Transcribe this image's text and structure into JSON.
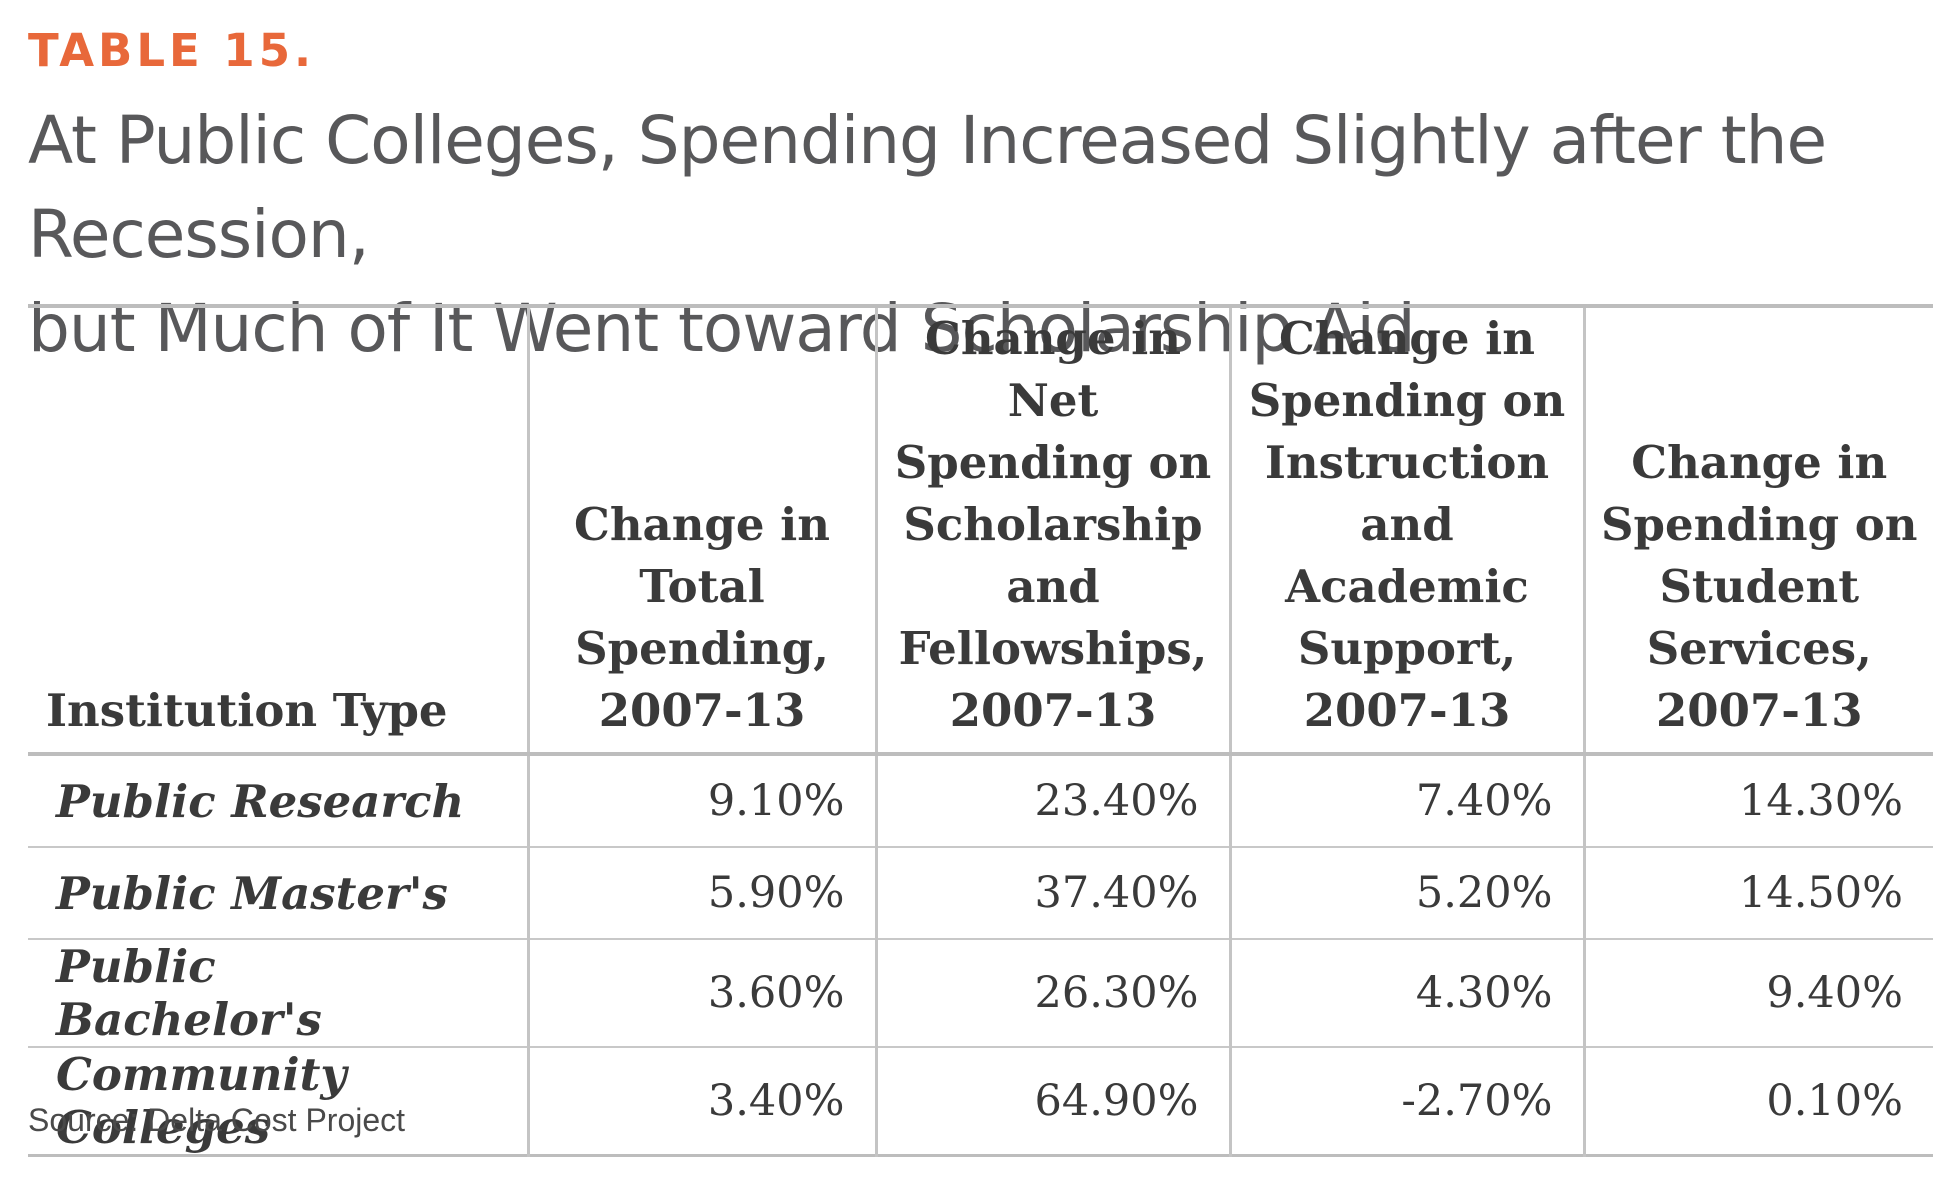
{
  "label": "TABLE 15.",
  "title_line1": "At Public Colleges, Spending Increased Slightly after the Recession,",
  "title_line2": "but Much of It Went toward Scholarship Aid",
  "headers": [
    "Institution Type",
    "Change in Total Spending, 2007-13",
    "Change in Net Spending on Scholarship and Fellowships, 2007-13",
    "Change in Spending on Instruction and Academic Support, 2007-13",
    "Change in Spending on Student Services, 2007-13"
  ],
  "rows": [
    {
      "type": "Public Research",
      "values": [
        "9.10%",
        "23.40%",
        "7.40%",
        "14.30%"
      ]
    },
    {
      "type": "Public Master's",
      "values": [
        "5.90%",
        "37.40%",
        "5.20%",
        "14.50%"
      ]
    },
    {
      "type": "Public Bachelor's",
      "values": [
        "3.60%",
        "26.30%",
        "4.30%",
        "9.40%"
      ]
    },
    {
      "type": "Community Colleges",
      "values": [
        "3.40%",
        "64.90%",
        "-2.70%",
        "0.10%"
      ]
    }
  ],
  "source": "Source: Delta Cost Project",
  "colors": {
    "accent": "#e8683a",
    "title": "#58585a",
    "rule": "#bdbdbd"
  }
}
